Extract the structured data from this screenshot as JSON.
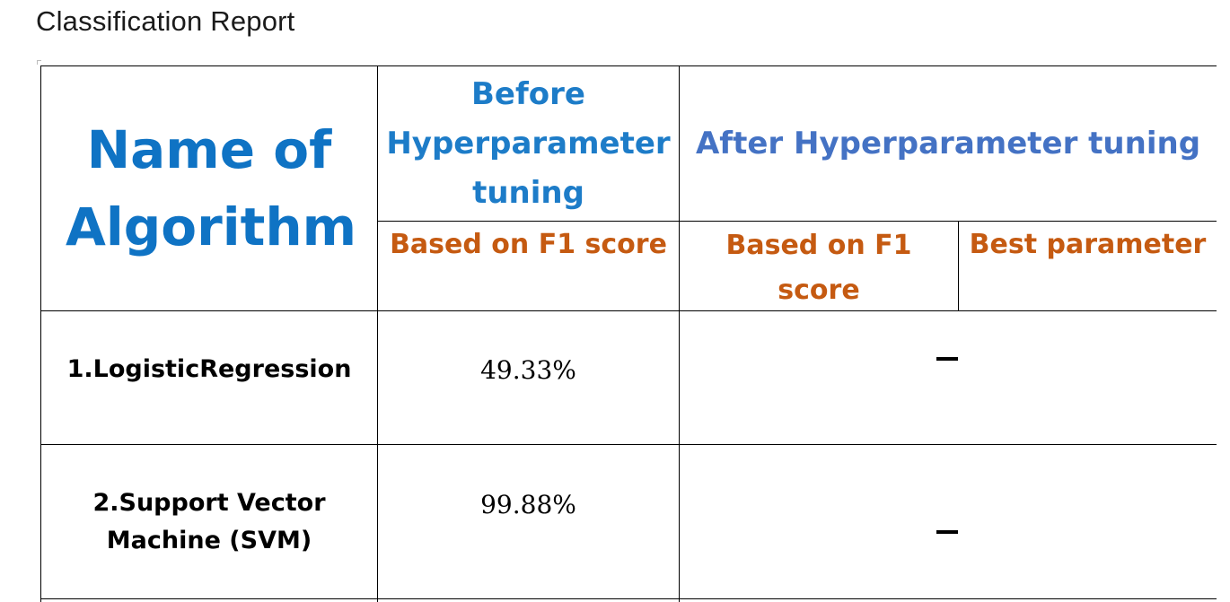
{
  "page": {
    "title": "Classification Report"
  },
  "table": {
    "header": {
      "algorithm": "Name of Algorithm",
      "before": "Before Hyperparameter tuning",
      "after": "After Hyperparameter tuning",
      "before_metric": "Based on F1 score",
      "after_metric": "Based on F1 score",
      "after_param": "Best parameter"
    },
    "rows": [
      {
        "name": "1.LogisticRegression",
        "before_f1": "49.33%",
        "after_f1": "–",
        "best_param": ""
      },
      {
        "name": "2.Support Vector Machine (SVM)",
        "before_f1": "99.88%",
        "after_f1": "–",
        "best_param": ""
      }
    ]
  },
  "colors": {
    "header_blue": "#0f73c4",
    "after_blue": "#4472c4",
    "metric_orange": "#c55a11"
  }
}
